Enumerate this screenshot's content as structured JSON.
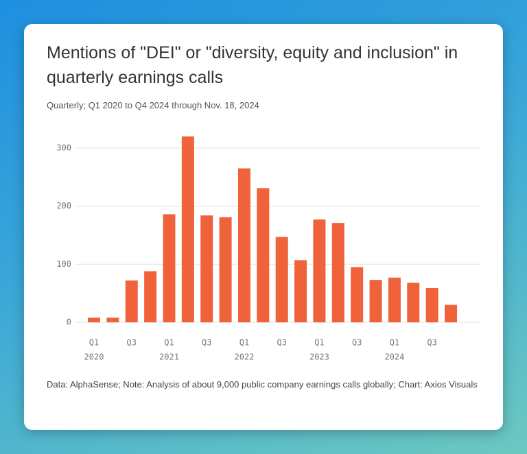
{
  "chart_data": {
    "type": "bar",
    "title": "Mentions of \"DEI\" or \"diversity, equity and inclusion\" in quarterly earnings calls",
    "subtitle": "Quarterly; Q1 2020 to Q4 2024 through Nov. 18, 2024",
    "note": "Data: AlphaSense; Note: Analysis of about 9,000 public company earnings calls globally; Chart: Axios Visuals",
    "categories": [
      "Q1",
      null,
      "Q3",
      null,
      "Q1",
      null,
      "Q3",
      null,
      "Q1",
      null,
      "Q3",
      null,
      "Q1",
      null,
      "Q3",
      null,
      "Q1",
      null,
      "Q3",
      null
    ],
    "category_years": [
      "2020",
      null,
      null,
      null,
      "2021",
      null,
      null,
      null,
      "2022",
      null,
      null,
      null,
      "2023",
      null,
      null,
      null,
      "2024",
      null,
      null,
      null
    ],
    "values": [
      8,
      8,
      72,
      88,
      186,
      320,
      184,
      181,
      265,
      231,
      147,
      107,
      177,
      171,
      95,
      73,
      77,
      68,
      59,
      30
    ],
    "color": "#f0623a",
    "ylim": [
      0,
      340
    ],
    "yticks": [
      0,
      100,
      200,
      300
    ],
    "grid": true
  }
}
